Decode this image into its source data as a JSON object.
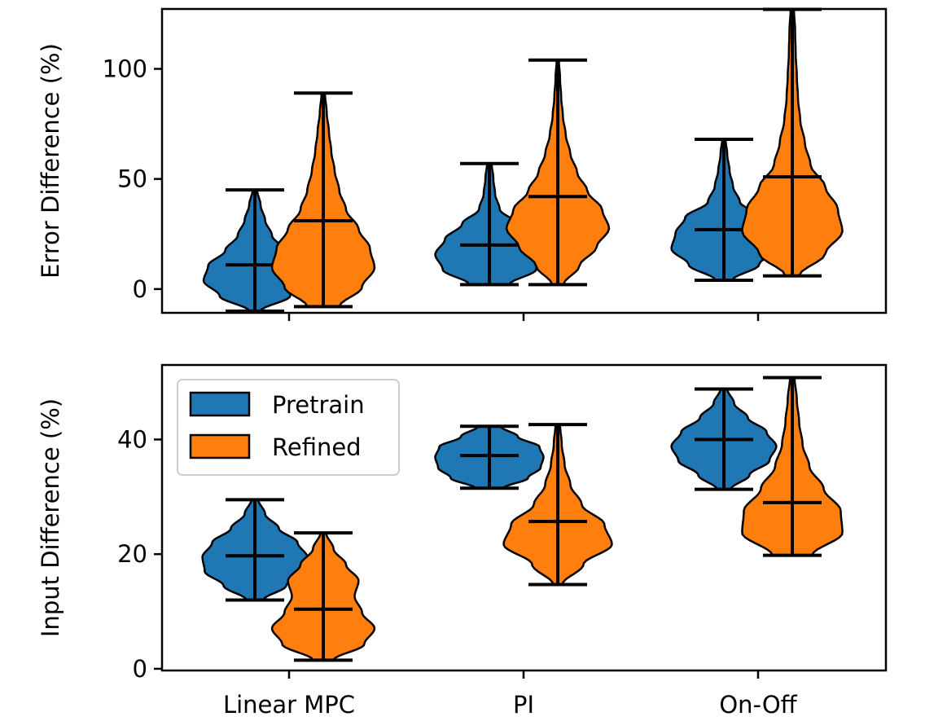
{
  "colors": {
    "pretrain": "#1f77b4",
    "refined": "#ff7f0e",
    "line": "#000000"
  },
  "legend": {
    "placement": "upper-left",
    "items": [
      {
        "label": "Pretrain",
        "color": "#1f77b4"
      },
      {
        "label": "Refined",
        "color": "#ff7f0e"
      }
    ]
  },
  "chart_data": [
    {
      "type": "violin",
      "ylabel": "Error Difference (%)",
      "xlabel": "",
      "categories": [
        "Linear MPC",
        "PI",
        "On-Off"
      ],
      "show_xtick_labels": false,
      "ylim": [
        -10.8,
        127.2
      ],
      "yticks": [
        0,
        50,
        100
      ],
      "series": [
        {
          "name": "Pretrain",
          "color": "#1f77b4",
          "stats": [
            {
              "min": -10,
              "max": 45,
              "mean": 11,
              "widths": [
                0.1,
                0.62,
                0.9,
                0.82,
                0.52,
                0.3,
                0.18,
                0.1,
                0.04
              ]
            },
            {
              "min": 2,
              "max": 57,
              "mean": 20,
              "widths": [
                0.35,
                0.82,
                0.95,
                0.78,
                0.48,
                0.18,
                0.1,
                0.07,
                0.04
              ]
            },
            {
              "min": 4,
              "max": 68,
              "mean": 27,
              "widths": [
                0.15,
                0.62,
                0.92,
                0.85,
                0.68,
                0.28,
                0.16,
                0.1,
                0.06,
                0.03
              ]
            }
          ]
        },
        {
          "name": "Refined",
          "color": "#ff7f0e",
          "stats": [
            {
              "min": -8,
              "max": 89,
              "mean": 31,
              "widths": [
                0.28,
                0.68,
                0.9,
                0.82,
                0.62,
                0.4,
                0.28,
                0.2,
                0.14,
                0.1,
                0.06,
                0.03
              ]
            },
            {
              "min": 2,
              "max": 104,
              "mean": 42,
              "widths": [
                0.1,
                0.38,
                0.68,
                0.9,
                0.78,
                0.52,
                0.34,
                0.22,
                0.14,
                0.09,
                0.06,
                0.04,
                0.02
              ]
            },
            {
              "min": 6,
              "max": 127,
              "mean": 51,
              "widths": [
                0.12,
                0.58,
                0.88,
                0.8,
                0.58,
                0.32,
                0.22,
                0.14,
                0.1,
                0.08,
                0.06,
                0.05,
                0.03
              ]
            }
          ]
        }
      ]
    },
    {
      "type": "violin",
      "ylabel": "Input Difference (%)",
      "xlabel": "",
      "categories": [
        "Linear MPC",
        "PI",
        "On-Off"
      ],
      "show_xtick_labels": true,
      "ylim": [
        -0.3,
        53
      ],
      "yticks": [
        0,
        20,
        40
      ],
      "series": [
        {
          "name": "Pretrain",
          "color": "#1f77b4",
          "stats": [
            {
              "min": 12,
              "max": 29.5,
              "mean": 19.7,
              "widths": [
                0.15,
                0.55,
                0.88,
                0.92,
                0.75,
                0.42,
                0.18,
                0.06
              ]
            },
            {
              "min": 31.5,
              "max": 42.3,
              "mean": 37.2,
              "widths": [
                0.25,
                0.68,
                0.9,
                0.95,
                0.88,
                0.5,
                0.2
              ]
            },
            {
              "min": 31.3,
              "max": 48.8,
              "mean": 40,
              "widths": [
                0.12,
                0.45,
                0.8,
                0.92,
                0.75,
                0.42,
                0.18,
                0.06
              ]
            }
          ]
        },
        {
          "name": "Refined",
          "color": "#ff7f0e",
          "stats": [
            {
              "min": 1.5,
              "max": 23.7,
              "mean": 10.4,
              "widths": [
                0.18,
                0.72,
                0.9,
                0.68,
                0.55,
                0.62,
                0.4,
                0.18,
                0.05
              ]
            },
            {
              "min": 14.7,
              "max": 42.6,
              "mean": 25.7,
              "widths": [
                0.08,
                0.45,
                0.95,
                0.82,
                0.42,
                0.22,
                0.12,
                0.07,
                0.04
              ]
            },
            {
              "min": 19.8,
              "max": 50.8,
              "mean": 29,
              "widths": [
                0.35,
                0.88,
                0.85,
                0.55,
                0.3,
                0.18,
                0.12,
                0.08,
                0.04
              ]
            }
          ]
        }
      ]
    }
  ]
}
